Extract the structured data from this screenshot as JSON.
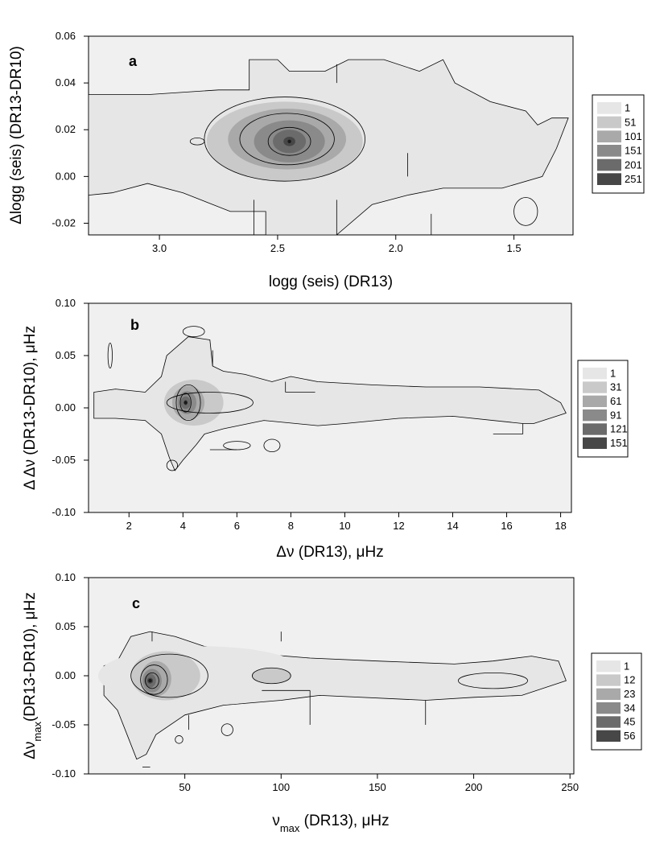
{
  "colors": {
    "background": "#ffffff",
    "plot_area": "#f0f0f0",
    "contour_line": "#000000",
    "levels": [
      "#e6e6e6",
      "#c9c9c9",
      "#a9a9a9",
      "#8a8a8a",
      "#6b6b6b",
      "#474747"
    ]
  },
  "chart_data": [
    {
      "type": "contour",
      "panel_label": "a",
      "xlabel_parts": [
        "logg (seis) (DR13)"
      ],
      "ylabel_parts": [
        "Δlogg (seis) (DR13-DR10)"
      ],
      "x_reversed": true,
      "xlim": [
        3.3,
        1.25
      ],
      "ylim": [
        -0.025,
        0.06
      ],
      "xticks": [
        3.0,
        2.5,
        2.0,
        1.5
      ],
      "xtick_labels": [
        "3.0",
        "2.5",
        "2.0",
        "1.5"
      ],
      "yticks": [
        -0.02,
        0.0,
        0.02,
        0.04,
        0.06
      ],
      "ytick_labels": [
        "-0.02",
        "0.00",
        "0.02",
        "0.04",
        "0.06"
      ],
      "legend_levels": [
        "1",
        "51",
        "101",
        "151",
        "201",
        "251"
      ],
      "peak": {
        "x": 2.45,
        "y": 0.015
      },
      "outer_contour": [
        [
          3.3,
          0.035
        ],
        [
          3.05,
          0.035
        ],
        [
          2.75,
          0.037
        ],
        [
          2.62,
          0.037
        ],
        [
          2.62,
          0.05
        ],
        [
          2.5,
          0.05
        ],
        [
          2.45,
          0.045
        ],
        [
          2.3,
          0.045
        ],
        [
          2.2,
          0.05
        ],
        [
          2.05,
          0.05
        ],
        [
          1.9,
          0.045
        ],
        [
          1.8,
          0.05
        ],
        [
          1.75,
          0.04
        ],
        [
          1.6,
          0.032
        ],
        [
          1.45,
          0.028
        ],
        [
          1.4,
          0.022
        ],
        [
          1.34,
          0.025
        ],
        [
          1.27,
          0.025
        ],
        [
          1.32,
          0.012
        ],
        [
          1.38,
          0.0
        ],
        [
          1.55,
          -0.005
        ],
        [
          1.8,
          -0.005
        ],
        [
          1.95,
          -0.008
        ],
        [
          2.1,
          -0.012
        ],
        [
          2.25,
          -0.025
        ],
        [
          2.55,
          -0.025
        ],
        [
          2.55,
          -0.015
        ],
        [
          2.7,
          -0.015
        ],
        [
          2.9,
          -0.007
        ],
        [
          3.05,
          -0.003
        ],
        [
          3.2,
          -0.007
        ],
        [
          3.3,
          -0.008
        ]
      ],
      "blobs": [
        {
          "level": 0,
          "cx": 2.5,
          "cy": 0.015,
          "rx": 0.6,
          "ry": 0.011
        },
        {
          "level": 0,
          "cx": 2.9,
          "cy": 0.015,
          "rx": 0.25,
          "ry": 0.004
        },
        {
          "level": 1,
          "cx": 2.47,
          "cy": 0.015,
          "rx": 0.33,
          "ry": 0.017
        },
        {
          "level": 2,
          "cx": 2.46,
          "cy": 0.016,
          "rx": 0.25,
          "ry": 0.013
        },
        {
          "level": 3,
          "cx": 2.45,
          "cy": 0.015,
          "rx": 0.15,
          "ry": 0.009
        },
        {
          "level": 4,
          "cx": 2.45,
          "cy": 0.015,
          "rx": 0.07,
          "ry": 0.005
        },
        {
          "level": 5,
          "cx": 2.45,
          "cy": 0.015,
          "rx": 0.025,
          "ry": 0.002
        }
      ],
      "inner_contours": [
        {
          "cx": 2.47,
          "cy": 0.016,
          "rx": 0.34,
          "ry": 0.018
        },
        {
          "cx": 2.46,
          "cy": 0.016,
          "rx": 0.2,
          "ry": 0.011
        },
        {
          "cx": 2.45,
          "cy": 0.015,
          "rx": 0.09,
          "ry": 0.006
        },
        {
          "cx": 2.84,
          "cy": 0.015,
          "rx": 0.03,
          "ry": 0.0015
        },
        {
          "cx": 1.45,
          "cy": -0.015,
          "rx": 0.05,
          "ry": 0.006
        }
      ],
      "segments": [
        [
          2.6,
          -0.01,
          2.6,
          -0.025
        ],
        [
          2.25,
          -0.01,
          2.25,
          -0.025
        ],
        [
          1.95,
          0.0,
          1.95,
          0.01
        ],
        [
          1.85,
          -0.016,
          1.85,
          -0.025
        ],
        [
          2.25,
          0.04,
          2.25,
          0.048
        ]
      ]
    },
    {
      "type": "contour",
      "panel_label": "b",
      "xlabel_parts": [
        "Δν (DR13), μHz"
      ],
      "ylabel_parts": [
        "Δ Δν (DR13-DR10), μHz"
      ],
      "x_reversed": false,
      "xlim": [
        0.5,
        18.4
      ],
      "ylim": [
        -0.1,
        0.1
      ],
      "xticks": [
        2,
        4,
        6,
        8,
        10,
        12,
        14,
        16,
        18
      ],
      "xtick_labels": [
        "2",
        "4",
        "6",
        "8",
        "10",
        "12",
        "14",
        "16",
        "18"
      ],
      "yticks": [
        -0.1,
        -0.05,
        0.0,
        0.05,
        0.1
      ],
      "ytick_labels": [
        "-0.10",
        "-0.05",
        "0.00",
        "0.05",
        "0.10"
      ],
      "legend_levels": [
        "1",
        "31",
        "61",
        "91",
        "121",
        "151"
      ],
      "peak": {
        "x": 4.1,
        "y": 0.005
      },
      "outer_contour": [
        [
          0.7,
          0.015
        ],
        [
          1.5,
          0.018
        ],
        [
          2.6,
          0.015
        ],
        [
          3.2,
          0.03
        ],
        [
          3.4,
          0.05
        ],
        [
          4.2,
          0.068
        ],
        [
          5.0,
          0.065
        ],
        [
          5.1,
          0.04
        ],
        [
          5.5,
          0.035
        ],
        [
          6.3,
          0.032
        ],
        [
          7.3,
          0.025
        ],
        [
          8.0,
          0.03
        ],
        [
          9.0,
          0.025
        ],
        [
          11.0,
          0.022
        ],
        [
          13.0,
          0.02
        ],
        [
          15.0,
          0.02
        ],
        [
          16.5,
          0.018
        ],
        [
          17.2,
          0.017
        ],
        [
          18.0,
          0.005
        ],
        [
          18.2,
          -0.005
        ],
        [
          17.0,
          -0.015
        ],
        [
          16.6,
          -0.015
        ],
        [
          14.0,
          -0.008
        ],
        [
          12.0,
          -0.01
        ],
        [
          10.0,
          -0.015
        ],
        [
          9.0,
          -0.017
        ],
        [
          7.0,
          -0.012
        ],
        [
          5.5,
          -0.02
        ],
        [
          4.8,
          -0.025
        ],
        [
          4.5,
          -0.035
        ],
        [
          4.0,
          -0.05
        ],
        [
          3.7,
          -0.06
        ],
        [
          3.5,
          -0.048
        ],
        [
          3.2,
          -0.025
        ],
        [
          2.6,
          -0.012
        ],
        [
          1.5,
          -0.01
        ],
        [
          0.7,
          -0.01
        ]
      ],
      "blobs": [
        {
          "level": 0,
          "cx": 5.5,
          "cy": 0.004,
          "rx": 3.5,
          "ry": 0.012
        },
        {
          "level": 0,
          "cx": 9.0,
          "cy": 0.003,
          "rx": 3.5,
          "ry": 0.006
        },
        {
          "level": 1,
          "cx": 4.4,
          "cy": 0.005,
          "rx": 1.1,
          "ry": 0.022
        },
        {
          "level": 2,
          "cx": 4.2,
          "cy": 0.005,
          "rx": 0.6,
          "ry": 0.016
        },
        {
          "level": 3,
          "cx": 4.15,
          "cy": 0.005,
          "rx": 0.35,
          "ry": 0.011
        },
        {
          "level": 4,
          "cx": 4.1,
          "cy": 0.005,
          "rx": 0.18,
          "ry": 0.006
        },
        {
          "level": 5,
          "cx": 4.1,
          "cy": 0.005,
          "rx": 0.07,
          "ry": 0.0025
        }
      ],
      "inner_contours": [
        {
          "cx": 5.0,
          "cy": 0.005,
          "rx": 1.6,
          "ry": 0.01
        },
        {
          "cx": 4.2,
          "cy": 0.005,
          "rx": 0.45,
          "ry": 0.017
        },
        {
          "cx": 4.1,
          "cy": 0.005,
          "rx": 0.2,
          "ry": 0.009
        },
        {
          "cx": 4.4,
          "cy": 0.073,
          "rx": 0.4,
          "ry": 0.005
        },
        {
          "cx": 6.0,
          "cy": -0.036,
          "rx": 0.5,
          "ry": 0.004
        },
        {
          "cx": 7.3,
          "cy": -0.036,
          "rx": 0.3,
          "ry": 0.006
        },
        {
          "cx": 3.6,
          "cy": -0.055,
          "rx": 0.2,
          "ry": 0.005
        },
        {
          "cx": 1.3,
          "cy": 0.05,
          "rx": 0.08,
          "ry": 0.012
        }
      ],
      "segments": [
        [
          5.0,
          -0.04,
          6.0,
          -0.04
        ],
        [
          7.8,
          0.025,
          7.8,
          0.015
        ],
        [
          7.8,
          0.015,
          8.9,
          0.015
        ],
        [
          16.6,
          -0.015,
          16.6,
          -0.025
        ],
        [
          15.5,
          -0.025,
          16.6,
          -0.025
        ],
        [
          5.1,
          0.055,
          5.1,
          0.04
        ]
      ]
    },
    {
      "type": "contour",
      "panel_label": "c",
      "xlabel_parts": [
        "ν",
        "max",
        " (DR13), μHz"
      ],
      "ylabel_parts": [
        "Δν",
        "max",
        "(DR13-DR10), μHz"
      ],
      "x_reversed": false,
      "xlim": [
        0,
        252
      ],
      "ylim": [
        -0.1,
        0.1
      ],
      "xticks": [
        50,
        100,
        150,
        200,
        250
      ],
      "xtick_labels": [
        "50",
        "100",
        "150",
        "200",
        "250"
      ],
      "yticks": [
        -0.1,
        -0.05,
        0.0,
        0.05,
        0.1
      ],
      "ytick_labels": [
        "-0.10",
        "-0.05",
        "0.00",
        "0.05",
        "0.10"
      ],
      "legend_levels": [
        "1",
        "12",
        "23",
        "34",
        "45",
        "56"
      ],
      "peak": {
        "x": 32,
        "y": -0.005
      },
      "outer_contour": [
        [
          8,
          0.01
        ],
        [
          15,
          0.015
        ],
        [
          22,
          0.04
        ],
        [
          32,
          0.045
        ],
        [
          45,
          0.04
        ],
        [
          60,
          0.03
        ],
        [
          90,
          0.022
        ],
        [
          115,
          0.018
        ],
        [
          150,
          0.015
        ],
        [
          190,
          0.012
        ],
        [
          210,
          0.015
        ],
        [
          230,
          0.02
        ],
        [
          244,
          0.015
        ],
        [
          248,
          -0.005
        ],
        [
          225,
          -0.02
        ],
        [
          200,
          -0.022
        ],
        [
          175,
          -0.025
        ],
        [
          120,
          -0.02
        ],
        [
          100,
          -0.025
        ],
        [
          70,
          -0.03
        ],
        [
          50,
          -0.04
        ],
        [
          35,
          -0.06
        ],
        [
          30,
          -0.08
        ],
        [
          25,
          -0.085
        ],
        [
          20,
          -0.06
        ],
        [
          15,
          -0.035
        ],
        [
          8,
          -0.02
        ]
      ],
      "blobs": [
        {
          "level": 0,
          "cx": 60,
          "cy": 0.0,
          "rx": 55,
          "ry": 0.03
        },
        {
          "level": 0,
          "cx": 150,
          "cy": -0.003,
          "rx": 60,
          "ry": 0.012
        },
        {
          "level": 1,
          "cx": 40,
          "cy": 0.0,
          "rx": 18,
          "ry": 0.025
        },
        {
          "level": 1,
          "cx": 95,
          "cy": 0.0,
          "rx": 10,
          "ry": 0.008
        },
        {
          "level": 2,
          "cx": 35,
          "cy": -0.003,
          "rx": 8,
          "ry": 0.018
        },
        {
          "level": 3,
          "cx": 33,
          "cy": -0.005,
          "rx": 5,
          "ry": 0.012
        },
        {
          "level": 4,
          "cx": 32,
          "cy": -0.005,
          "rx": 3,
          "ry": 0.007
        },
        {
          "level": 5,
          "cx": 32,
          "cy": -0.005,
          "rx": 1.5,
          "ry": 0.003
        }
      ],
      "inner_contours": [
        {
          "cx": 42,
          "cy": 0.0,
          "rx": 20,
          "ry": 0.022
        },
        {
          "cx": 34,
          "cy": -0.004,
          "rx": 7,
          "ry": 0.015
        },
        {
          "cx": 33,
          "cy": -0.005,
          "rx": 3.5,
          "ry": 0.008
        },
        {
          "cx": 95,
          "cy": 0.0,
          "rx": 10,
          "ry": 0.008
        },
        {
          "cx": 72,
          "cy": -0.055,
          "rx": 3,
          "ry": 0.006
        },
        {
          "cx": 47,
          "cy": -0.065,
          "rx": 2,
          "ry": 0.004
        },
        {
          "cx": 210,
          "cy": -0.005,
          "rx": 18,
          "ry": 0.008
        }
      ],
      "segments": [
        [
          33,
          0.045,
          33,
          0.035
        ],
        [
          100,
          0.045,
          100,
          0.035
        ],
        [
          90,
          -0.015,
          115,
          -0.015
        ],
        [
          115,
          -0.015,
          115,
          -0.05
        ],
        [
          175,
          -0.025,
          175,
          -0.05
        ],
        [
          52,
          -0.04,
          52,
          -0.055
        ],
        [
          28,
          -0.093,
          32,
          -0.093
        ]
      ]
    }
  ]
}
